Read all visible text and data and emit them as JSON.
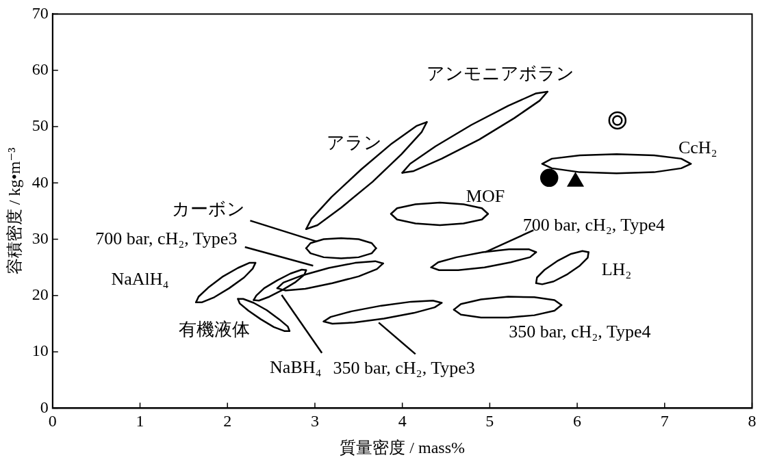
{
  "chart_data": {
    "type": "line",
    "xlabel": "質量密度 / mass%",
    "ylabel": "容積密度 / kg•m⁻³",
    "xlim": [
      0,
      8
    ],
    "ylim": [
      0,
      70
    ],
    "xticks": [
      0,
      1,
      2,
      3,
      4,
      5,
      6,
      7,
      8
    ],
    "yticks": [
      0,
      10,
      20,
      30,
      40,
      50,
      60,
      70
    ],
    "grid": false,
    "legend": false,
    "marker": "none",
    "line_style": "solid",
    "series": [
      {
        "name": "アラン",
        "color": "#000000",
        "x": [
          2.9,
          2.96,
          3.19,
          3.53,
          3.88,
          4.16,
          4.28
        ],
        "values": [
          31.8,
          33.6,
          37.5,
          42.4,
          47.0,
          50.1,
          50.8
        ]
      },
      {
        "color": "#000000",
        "x": [
          2.9,
          3.03,
          3.3,
          3.66,
          3.99,
          4.22,
          4.28
        ],
        "values": [
          31.8,
          32.5,
          35.6,
          40.2,
          45.1,
          49.0,
          50.8
        ]
      },
      {
        "name": "アンモニアボラン",
        "color": "#000000",
        "x": [
          4.0,
          4.09,
          4.38,
          4.79,
          5.21,
          5.53,
          5.66
        ],
        "values": [
          41.8,
          43.4,
          46.5,
          50.3,
          53.7,
          55.9,
          56.2
        ]
      },
      {
        "color": "#000000",
        "x": [
          4.0,
          4.13,
          4.45,
          4.88,
          5.28,
          5.57,
          5.66
        ],
        "values": [
          41.8,
          42.1,
          44.3,
          47.7,
          51.5,
          54.6,
          56.2
        ]
      },
      {
        "name": "MOF",
        "color": "#000000",
        "x": [
          3.87,
          3.94,
          4.15,
          4.43,
          4.7,
          4.91,
          4.98
        ],
        "values": [
          34.5,
          35.5,
          36.2,
          36.5,
          36.2,
          35.5,
          34.5
        ]
      },
      {
        "color": "#000000",
        "x": [
          3.87,
          3.94,
          4.15,
          4.43,
          4.7,
          4.91,
          4.98
        ],
        "values": [
          34.5,
          33.5,
          32.8,
          32.5,
          32.8,
          33.5,
          34.5
        ]
      },
      {
        "name": "CcH₂",
        "color": "#000000",
        "x": [
          5.6,
          5.71,
          6.03,
          6.45,
          6.88,
          7.19,
          7.3
        ],
        "values": [
          43.4,
          44.3,
          44.9,
          45.1,
          44.9,
          44.3,
          43.4
        ]
      },
      {
        "color": "#000000",
        "x": [
          5.6,
          5.71,
          6.03,
          6.45,
          6.88,
          7.19,
          7.3
        ],
        "values": [
          43.4,
          42.6,
          41.9,
          41.7,
          41.9,
          42.6,
          43.4
        ]
      },
      {
        "name": "カーボン",
        "color": "#000000",
        "x": [
          2.9,
          2.95,
          3.1,
          3.3,
          3.5,
          3.65,
          3.7
        ],
        "values": [
          28.4,
          29.3,
          30.0,
          30.2,
          30.0,
          29.3,
          28.4
        ]
      },
      {
        "color": "#000000",
        "x": [
          2.9,
          2.95,
          3.1,
          3.3,
          3.5,
          3.65,
          3.7
        ],
        "values": [
          28.4,
          27.5,
          26.8,
          26.6,
          26.8,
          27.5,
          28.4
        ]
      },
      {
        "name": "700 bar, cH₂, Type3",
        "color": "#000000",
        "x": [
          2.57,
          2.64,
          2.86,
          3.16,
          3.46,
          3.69,
          3.78
        ],
        "values": [
          21.3,
          22.3,
          23.6,
          24.9,
          25.8,
          26.1,
          25.7
        ]
      },
      {
        "color": "#000000",
        "x": [
          2.57,
          2.66,
          2.89,
          3.2,
          3.5,
          3.71,
          3.78
        ],
        "values": [
          21.3,
          20.9,
          21.2,
          22.2,
          23.4,
          24.7,
          25.7
        ]
      },
      {
        "name": "NaAlH₄",
        "color": "#000000",
        "x": [
          1.64,
          1.67,
          1.78,
          1.94,
          2.12,
          2.25,
          2.32
        ],
        "values": [
          18.8,
          19.8,
          21.4,
          23.3,
          24.9,
          25.8,
          25.8
        ]
      },
      {
        "color": "#000000",
        "x": [
          1.64,
          1.71,
          1.85,
          2.02,
          2.19,
          2.29,
          2.32
        ],
        "values": [
          18.8,
          18.8,
          19.7,
          21.3,
          23.2,
          24.8,
          25.8
        ]
      },
      {
        "name": "NaBH₄",
        "color": "#000000",
        "x": [
          2.3,
          2.33,
          2.42,
          2.57,
          2.72,
          2.85,
          2.9
        ],
        "values": [
          19.2,
          20.0,
          21.3,
          22.7,
          23.9,
          24.6,
          24.5
        ]
      },
      {
        "color": "#000000",
        "x": [
          2.3,
          2.36,
          2.48,
          2.63,
          2.78,
          2.88,
          2.9
        ],
        "values": [
          19.2,
          19.1,
          19.8,
          21.0,
          22.4,
          23.7,
          24.5
        ]
      },
      {
        "name": "有機液体",
        "color": "#000000",
        "x": [
          2.12,
          2.18,
          2.3,
          2.45,
          2.59,
          2.69,
          2.71
        ],
        "values": [
          19.4,
          19.4,
          18.7,
          17.4,
          15.8,
          14.5,
          13.7
        ]
      },
      {
        "color": "#000000",
        "x": [
          2.12,
          2.14,
          2.24,
          2.38,
          2.53,
          2.65,
          2.71
        ],
        "values": [
          19.4,
          18.6,
          17.3,
          15.8,
          14.4,
          13.7,
          13.7
        ]
      },
      {
        "name": "350 bar, cH₂, Type3",
        "color": "#000000",
        "x": [
          3.1,
          3.18,
          3.42,
          3.76,
          4.1,
          4.35,
          4.45
        ],
        "values": [
          15.4,
          16.2,
          17.2,
          18.2,
          18.9,
          19.1,
          18.7
        ]
      },
      {
        "color": "#000000",
        "x": [
          3.1,
          3.2,
          3.45,
          3.79,
          4.13,
          4.37,
          4.45
        ],
        "values": [
          15.4,
          15.0,
          15.2,
          15.9,
          16.9,
          17.9,
          18.7
        ]
      },
      {
        "name": "350 bar, cH₂, Type4",
        "color": "#000000",
        "x": [
          4.59,
          4.67,
          4.9,
          5.21,
          5.51,
          5.74,
          5.82
        ],
        "values": [
          17.5,
          18.5,
          19.3,
          19.8,
          19.7,
          19.2,
          18.3
        ]
      },
      {
        "color": "#000000",
        "x": [
          4.59,
          4.67,
          4.9,
          5.21,
          5.51,
          5.74,
          5.82
        ],
        "values": [
          17.5,
          16.6,
          16.1,
          16.1,
          16.5,
          17.3,
          18.3
        ]
      },
      {
        "name": "700 bar, cH₂, Type4",
        "color": "#000000",
        "x": [
          4.33,
          4.41,
          4.62,
          4.92,
          5.22,
          5.45,
          5.53
        ],
        "values": [
          25.0,
          25.9,
          26.8,
          27.7,
          28.2,
          28.2,
          27.7
        ]
      },
      {
        "color": "#000000",
        "x": [
          4.33,
          4.42,
          4.64,
          4.94,
          5.24,
          5.46,
          5.53
        ],
        "values": [
          25.0,
          24.5,
          24.5,
          25.0,
          25.9,
          26.8,
          27.7
        ]
      },
      {
        "name": "LH₂",
        "color": "#000000",
        "x": [
          5.53,
          5.54,
          5.63,
          5.78,
          5.93,
          6.06,
          6.13
        ],
        "values": [
          22.2,
          23.2,
          24.6,
          26.2,
          27.4,
          27.9,
          27.7
        ]
      },
      {
        "color": "#000000",
        "x": [
          5.53,
          5.6,
          5.73,
          5.89,
          6.03,
          6.12,
          6.13
        ],
        "values": [
          22.2,
          22.0,
          22.5,
          23.8,
          25.3,
          26.7,
          27.7
        ]
      },
      {
        "type": "scatter",
        "marker": "circle",
        "color": "#000000",
        "x": [
          5.68
        ],
        "values": [
          40.9
        ]
      },
      {
        "type": "scatter",
        "marker": "triangle",
        "color": "#000000",
        "x": [
          5.98
        ],
        "values": [
          40.2
        ]
      },
      {
        "type": "scatter",
        "marker": "circle",
        "color": "#ffffff",
        "x": [
          6.46
        ],
        "values": [
          51.1
        ]
      }
    ]
  }
}
